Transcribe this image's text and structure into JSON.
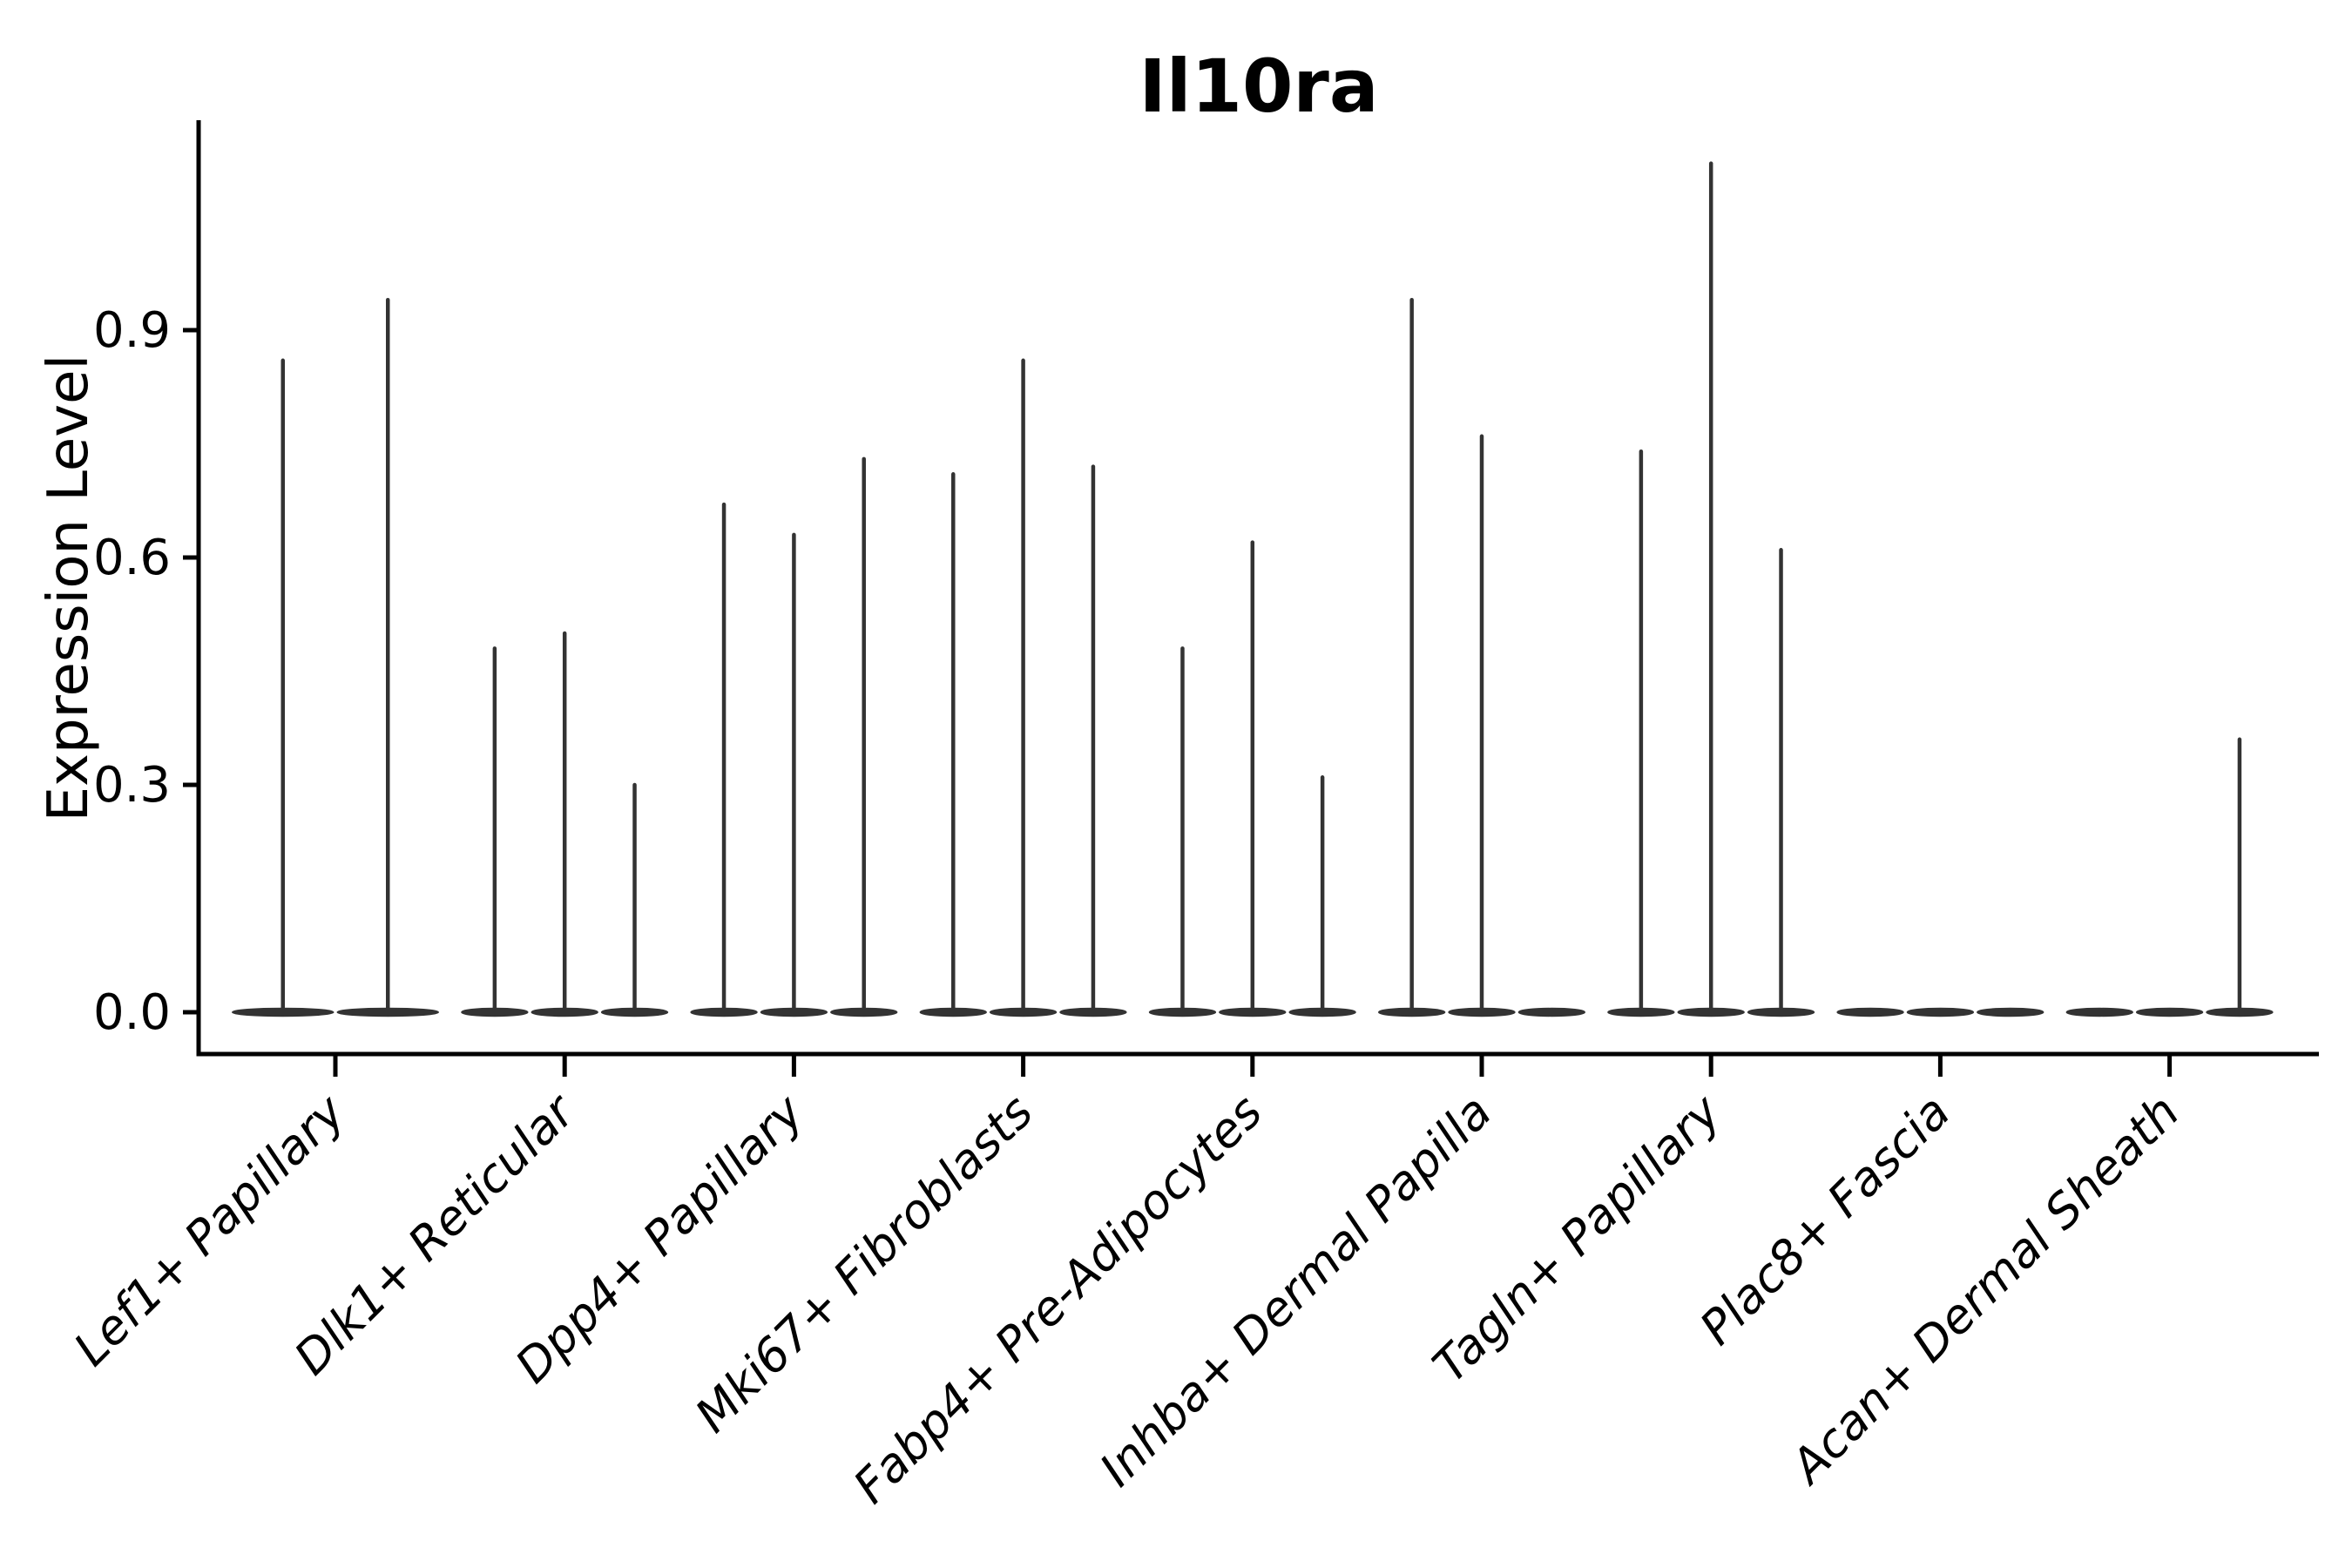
{
  "page": {
    "background": "#ffffff"
  },
  "chart_data": {
    "type": "violin",
    "title": "Il10ra",
    "xlabel": "",
    "ylabel": "Expression Level",
    "ytick_labels": [
      "0.0",
      "0.3",
      "0.6",
      "0.9"
    ],
    "ytick_values": [
      0.0,
      0.3,
      0.6,
      0.9
    ],
    "ylim": [
      0,
      1.2
    ],
    "grid": false,
    "legend_position": "none",
    "violin_color": "#333333",
    "axis_color": "#000000",
    "categories": [
      "Lef1+ Papillary",
      "Dlk1+ Reticular",
      "Dpp4+ Papillary",
      "Mki67+ Fibroblasts",
      "Fabp4+ Pre-Adipocytes",
      "Inhba+ Dermal Papilla",
      "Tagln+ Papillary",
      "Plac8+ Fascia",
      "Acan+ Dermal Sheath"
    ],
    "groups": [
      {
        "category": "Lef1+ Papillary",
        "violin_max": [
          0.86,
          0.94
        ]
      },
      {
        "category": "Dlk1+ Reticular",
        "violin_max": [
          0.48,
          0.5,
          0.3
        ]
      },
      {
        "category": "Dpp4+ Papillary",
        "violin_max": [
          0.67,
          0.63,
          0.73
        ]
      },
      {
        "category": "Mki67+ Fibroblasts",
        "violin_max": [
          0.71,
          0.86,
          0.72
        ]
      },
      {
        "category": "Fabp4+ Pre-Adipocytes",
        "violin_max": [
          0.48,
          0.62,
          0.31
        ]
      },
      {
        "category": "Inhba+ Dermal Papilla",
        "violin_max": [
          0.94,
          0.76,
          0
        ]
      },
      {
        "category": "Tagln+ Papillary",
        "violin_max": [
          0.74,
          1.12,
          0.61
        ]
      },
      {
        "category": "Plac8+ Fascia",
        "violin_max": [
          0,
          0,
          0
        ]
      },
      {
        "category": "Acan+ Dermal Sheath",
        "violin_max": [
          0,
          0,
          0.36
        ]
      }
    ]
  }
}
